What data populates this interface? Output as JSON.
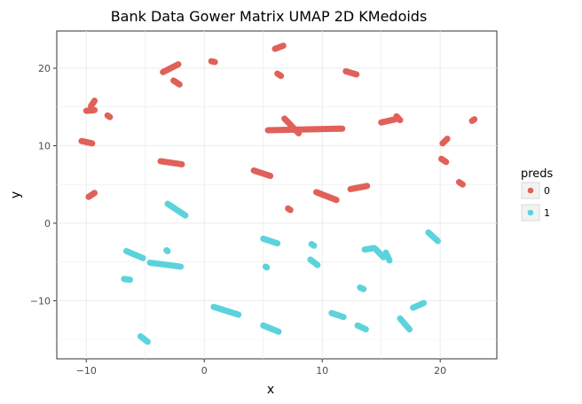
{
  "chart_data": {
    "type": "scatter",
    "title": "Bank Data Gower Matrix UMAP 2D KMedoids",
    "xlabel": "x",
    "ylabel": "y",
    "xlim": [
      -12.5,
      24.8
    ],
    "ylim": [
      -17.5,
      24.8
    ],
    "x_ticks": [
      -10,
      0,
      10,
      20
    ],
    "x_tick_labels": [
      "−10",
      "0",
      "10",
      "20"
    ],
    "y_ticks": [
      -10,
      0,
      10,
      20
    ],
    "y_tick_labels": [
      "−10",
      "0",
      "10",
      "20"
    ],
    "grid": true,
    "legend": {
      "title": "preds",
      "position": "right",
      "entries": [
        "0",
        "1"
      ]
    },
    "colors": {
      "0": "#e06159",
      "1": "#5bd3dc"
    },
    "series": [
      {
        "name": "0",
        "clusters": [
          {
            "x": [
              -10.4,
              -9.5
            ],
            "y": [
              10.6,
              10.3
            ]
          },
          {
            "x": [
              -10.0,
              -9.3
            ],
            "y": [
              14.5,
              14.6
            ]
          },
          {
            "x": [
              -9.6,
              -9.3
            ],
            "y": [
              15.1,
              15.8
            ]
          },
          {
            "x": [
              -8.2,
              -8.0
            ],
            "y": [
              13.9,
              13.7
            ]
          },
          {
            "x": [
              -9.8,
              -9.3
            ],
            "y": [
              3.4,
              3.9
            ]
          },
          {
            "x": [
              -3.5,
              -2.2
            ],
            "y": [
              19.5,
              20.5
            ]
          },
          {
            "x": [
              -2.6,
              -2.1
            ],
            "y": [
              18.4,
              17.9
            ]
          },
          {
            "x": [
              -3.7,
              -1.9
            ],
            "y": [
              8.0,
              7.6
            ]
          },
          {
            "x": [
              0.6,
              0.9
            ],
            "y": [
              20.9,
              20.8
            ]
          },
          {
            "x": [
              6.0,
              6.7
            ],
            "y": [
              22.5,
              22.9
            ]
          },
          {
            "x": [
              6.2,
              6.5
            ],
            "y": [
              19.3,
              19.0
            ]
          },
          {
            "x": [
              4.2,
              5.6
            ],
            "y": [
              6.8,
              6.1
            ]
          },
          {
            "x": [
              7.1,
              7.3
            ],
            "y": [
              1.9,
              1.7
            ]
          },
          {
            "x": [
              5.4,
              11.7
            ],
            "y": [
              12.0,
              12.2
            ]
          },
          {
            "x": [
              6.8,
              8.0
            ],
            "y": [
              13.5,
              11.6
            ]
          },
          {
            "x": [
              9.5,
              11.2
            ],
            "y": [
              4.0,
              3.0
            ]
          },
          {
            "x": [
              12.4,
              13.8
            ],
            "y": [
              4.4,
              4.8
            ]
          },
          {
            "x": [
              12.0,
              12.9
            ],
            "y": [
              19.6,
              19.2
            ]
          },
          {
            "x": [
              15.0,
              16.2
            ],
            "y": [
              13.0,
              13.4
            ]
          },
          {
            "x": [
              16.3,
              16.6
            ],
            "y": [
              13.8,
              13.3
            ]
          },
          {
            "x": [
              20.2,
              20.6
            ],
            "y": [
              10.3,
              10.9
            ]
          },
          {
            "x": [
              20.1,
              20.5
            ],
            "y": [
              8.3,
              7.9
            ]
          },
          {
            "x": [
              21.6,
              21.9
            ],
            "y": [
              5.3,
              5.0
            ]
          },
          {
            "x": [
              22.7,
              22.9
            ],
            "y": [
              13.2,
              13.4
            ]
          }
        ]
      },
      {
        "name": "1",
        "clusters": [
          {
            "x": [
              -6.6,
              -5.2
            ],
            "y": [
              -3.6,
              -4.5
            ]
          },
          {
            "x": [
              -6.8,
              -6.3
            ],
            "y": [
              -7.2,
              -7.3
            ]
          },
          {
            "x": [
              -4.6,
              -2.0
            ],
            "y": [
              -5.1,
              -5.6
            ]
          },
          {
            "x": [
              -3.2,
              -3.1
            ],
            "y": [
              -3.5,
              -3.6
            ]
          },
          {
            "x": [
              -5.4,
              -4.8
            ],
            "y": [
              -14.6,
              -15.3
            ]
          },
          {
            "x": [
              -3.1,
              -1.6
            ],
            "y": [
              2.5,
              1.0
            ]
          },
          {
            "x": [
              0.8,
              2.9
            ],
            "y": [
              -10.8,
              -11.8
            ]
          },
          {
            "x": [
              5.0,
              6.2
            ],
            "y": [
              -2.0,
              -2.6
            ]
          },
          {
            "x": [
              5.2,
              5.3
            ],
            "y": [
              -5.6,
              -5.7
            ]
          },
          {
            "x": [
              5.0,
              6.3
            ],
            "y": [
              -13.2,
              -14.0
            ]
          },
          {
            "x": [
              9.1,
              9.3
            ],
            "y": [
              -2.7,
              -2.9
            ]
          },
          {
            "x": [
              9.0,
              9.6
            ],
            "y": [
              -4.7,
              -5.4
            ]
          },
          {
            "x": [
              10.8,
              11.8
            ],
            "y": [
              -11.6,
              -12.1
            ]
          },
          {
            "x": [
              13.2,
              13.5
            ],
            "y": [
              -8.3,
              -8.5
            ]
          },
          {
            "x": [
              13.0,
              13.7
            ],
            "y": [
              -13.2,
              -13.7
            ]
          },
          {
            "x": [
              13.6,
              14.4
            ],
            "y": [
              -3.4,
              -3.2
            ]
          },
          {
            "x": [
              14.5,
              15.2
            ],
            "y": [
              -3.3,
              -4.4
            ]
          },
          {
            "x": [
              15.4,
              15.7
            ],
            "y": [
              -3.8,
              -4.8
            ]
          },
          {
            "x": [
              16.6,
              17.4
            ],
            "y": [
              -12.3,
              -13.7
            ]
          },
          {
            "x": [
              17.7,
              18.6
            ],
            "y": [
              -10.9,
              -10.3
            ]
          },
          {
            "x": [
              19.0,
              19.8
            ],
            "y": [
              -1.2,
              -2.3
            ]
          }
        ]
      }
    ]
  }
}
